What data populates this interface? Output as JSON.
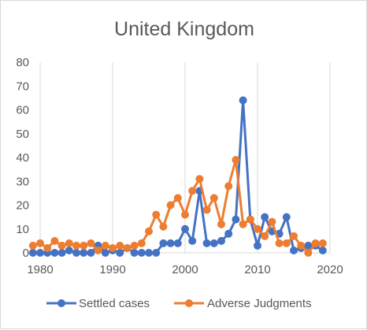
{
  "chart_data": {
    "type": "line",
    "title": "United Kingdom",
    "xlabel": "",
    "ylabel": "",
    "xlim": [
      1980,
      2020
    ],
    "ylim": [
      0,
      80
    ],
    "x_ticks": [
      "1980",
      "1990",
      "2000",
      "2010",
      "2020"
    ],
    "y_ticks": [
      "0",
      "10",
      "20",
      "30",
      "40",
      "50",
      "60",
      "70",
      "80"
    ],
    "grid": "vertical",
    "legend_position": "bottom",
    "series": [
      {
        "name": "Settled cases",
        "color": "#4472c4",
        "x": [
          1979,
          1980,
          1981,
          1982,
          1983,
          1984,
          1985,
          1986,
          1987,
          1988,
          1989,
          1990,
          1991,
          1992,
          1993,
          1994,
          1995,
          1996,
          1997,
          1998,
          1999,
          2000,
          2001,
          2002,
          2003,
          2004,
          2005,
          2006,
          2007,
          2008,
          2009,
          2010,
          2011,
          2012,
          2013,
          2014,
          2015,
          2016,
          2017,
          2018,
          2019
        ],
        "values": [
          0,
          0,
          0,
          0,
          0,
          1,
          0,
          0,
          0,
          3,
          0,
          1,
          0,
          2,
          0,
          0,
          0,
          0,
          4,
          4,
          4,
          10,
          5,
          26,
          4,
          4,
          5,
          8,
          14,
          64,
          14,
          3,
          15,
          9,
          8,
          15,
          1,
          2,
          3,
          3,
          1
        ]
      },
      {
        "name": "Adverse Judgments",
        "color": "#ed7d31",
        "x": [
          1979,
          1980,
          1981,
          1982,
          1983,
          1984,
          1985,
          1986,
          1987,
          1988,
          1989,
          1990,
          1991,
          1992,
          1993,
          1994,
          1995,
          1996,
          1997,
          1998,
          1999,
          2000,
          2001,
          2002,
          2003,
          2004,
          2005,
          2006,
          2007,
          2008,
          2009,
          2010,
          2011,
          2012,
          2013,
          2014,
          2015,
          2016,
          2017,
          2018,
          2019
        ],
        "values": [
          3,
          4,
          2,
          5,
          3,
          4,
          3,
          3,
          4,
          1,
          3,
          2,
          3,
          2,
          3,
          4,
          9,
          16,
          11,
          20,
          23,
          16,
          26,
          31,
          18,
          23,
          12,
          28,
          39,
          12,
          14,
          10,
          7,
          13,
          4,
          4,
          7,
          3,
          0,
          4,
          4
        ]
      }
    ]
  }
}
